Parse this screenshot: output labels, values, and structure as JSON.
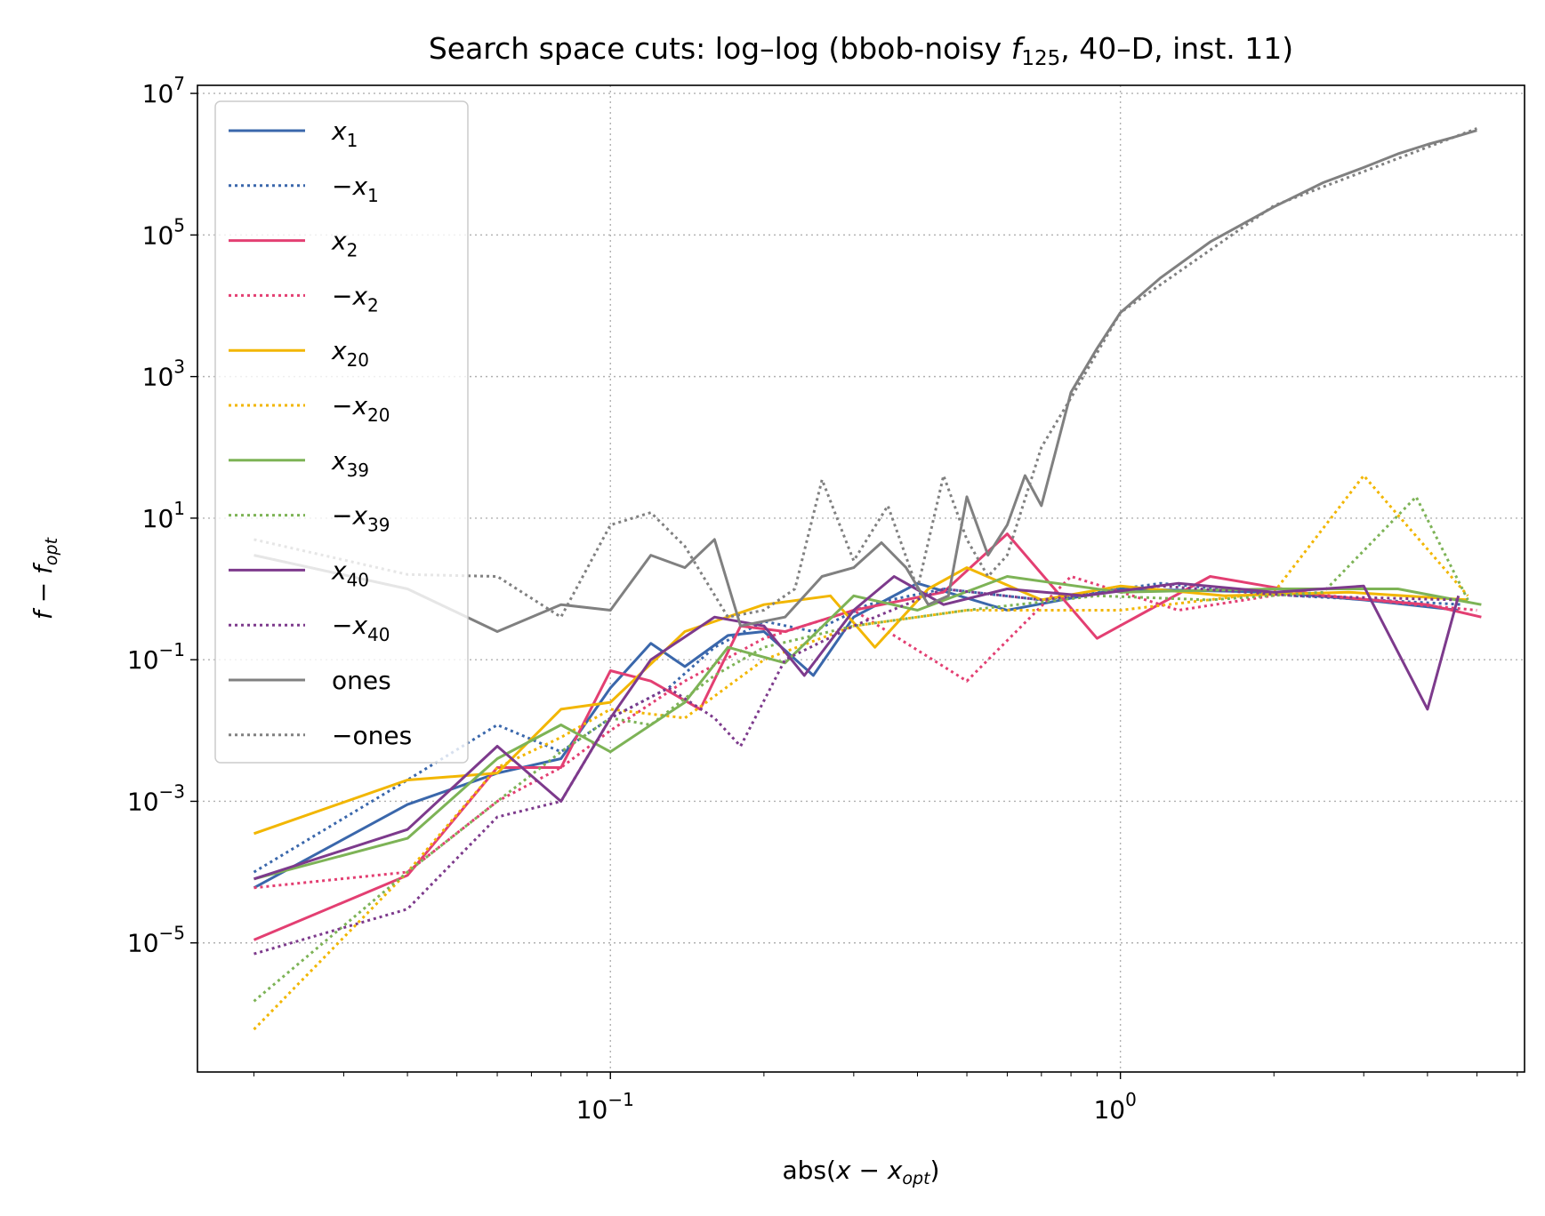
{
  "chart_data": {
    "type": "line",
    "title": "Search space cuts: log–log (bbob-noisy f125, 40–D, inst. 11)",
    "title_parts": {
      "prefix": "Search space cuts: log–log (bbob-noisy ",
      "f": "f",
      "f_sub": "125",
      "suffix": ", 40–D, inst. 11)"
    },
    "xlabel": "abs(x − x_opt)",
    "xlabel_parts": {
      "prefix": "abs(",
      "var": "x",
      "minus": " − ",
      "var2": "x",
      "sub": "opt",
      "suffix": ")"
    },
    "ylabel": "f − f_opt",
    "ylabel_parts": {
      "var": "f",
      "minus": " − ",
      "var2": "f",
      "sub": "opt"
    },
    "x_scale": "log",
    "y_scale": "log",
    "xlim": [
      0.0155,
      6.2
    ],
    "ylim": [
      1.5e-07,
      13000000.0
    ],
    "x_ticks": [
      {
        "value": 0.1,
        "base": "10",
        "exp": "−1"
      },
      {
        "value": 1,
        "base": "10",
        "exp": "0"
      }
    ],
    "y_ticks": [
      {
        "value": 1e-05,
        "base": "10",
        "exp": "−5"
      },
      {
        "value": 0.001,
        "base": "10",
        "exp": "−3"
      },
      {
        "value": 0.1,
        "base": "10",
        "exp": "−1"
      },
      {
        "value": 10,
        "base": "10",
        "exp": "1"
      },
      {
        "value": 1000,
        "base": "10",
        "exp": "3"
      },
      {
        "value": 100000,
        "base": "10",
        "exp": "5"
      },
      {
        "value": 10000000,
        "base": "10",
        "exp": "7"
      }
    ],
    "grid": true,
    "legend_position": "upper-left",
    "series": [
      {
        "name": "x_1",
        "label_parts": {
          "neg": "",
          "var": "x",
          "sub": "1"
        },
        "color": "#3a67ab",
        "dash": "solid",
        "x": [
          0.02,
          0.04,
          0.06,
          0.08,
          0.1,
          0.12,
          0.14,
          0.17,
          0.2,
          0.25,
          0.3,
          0.4,
          0.6,
          1.0,
          2.0,
          3.0,
          4.6
        ],
        "y": [
          6e-05,
          0.0009,
          0.0025,
          0.004,
          0.04,
          0.17,
          0.08,
          0.22,
          0.25,
          0.06,
          0.4,
          1.2,
          0.5,
          1.0,
          0.9,
          0.7,
          0.5
        ]
      },
      {
        "name": "−x_1",
        "label_parts": {
          "neg": "−",
          "var": "x",
          "sub": "1"
        },
        "color": "#3a67ab",
        "dash": "dotted",
        "x": [
          0.02,
          0.04,
          0.06,
          0.08,
          0.1,
          0.13,
          0.16,
          0.2,
          0.25,
          0.32,
          0.45,
          0.7,
          1.2,
          2.2,
          4.7
        ],
        "y": [
          0.0001,
          0.002,
          0.012,
          0.005,
          0.015,
          0.04,
          0.15,
          0.35,
          0.25,
          0.6,
          1.0,
          0.7,
          1.2,
          0.8,
          0.6
        ]
      },
      {
        "name": "x_2",
        "label_parts": {
          "neg": "",
          "var": "x",
          "sub": "2"
        },
        "color": "#e33f72",
        "dash": "solid",
        "x": [
          0.02,
          0.04,
          0.06,
          0.08,
          0.1,
          0.12,
          0.15,
          0.18,
          0.22,
          0.3,
          0.45,
          0.6,
          0.9,
          1.5,
          2.5,
          4.0,
          5.1
        ],
        "y": [
          1.1e-05,
          9e-05,
          0.003,
          0.003,
          0.07,
          0.05,
          0.02,
          0.3,
          0.25,
          0.5,
          0.9,
          6.0,
          0.2,
          1.5,
          0.8,
          0.6,
          0.4
        ]
      },
      {
        "name": "−x_2",
        "label_parts": {
          "neg": "−",
          "var": "x",
          "sub": "2"
        },
        "color": "#e33f72",
        "dash": "dotted",
        "x": [
          0.02,
          0.04,
          0.06,
          0.08,
          0.1,
          0.14,
          0.2,
          0.3,
          0.5,
          0.8,
          1.3,
          2.2,
          3.8,
          5.0
        ],
        "y": [
          6e-05,
          0.0001,
          0.001,
          0.003,
          0.01,
          0.05,
          0.2,
          0.5,
          0.05,
          1.5,
          0.5,
          0.9,
          0.6,
          0.5
        ]
      },
      {
        "name": "x_20",
        "label_parts": {
          "neg": "",
          "var": "x",
          "sub": "20"
        },
        "color": "#f2b600",
        "dash": "solid",
        "x": [
          0.02,
          0.04,
          0.06,
          0.08,
          0.1,
          0.14,
          0.2,
          0.27,
          0.33,
          0.42,
          0.5,
          0.7,
          1.0,
          1.6,
          2.8,
          4.8
        ],
        "y": [
          0.00035,
          0.002,
          0.0025,
          0.02,
          0.025,
          0.25,
          0.6,
          0.8,
          0.15,
          1.0,
          2.0,
          0.7,
          1.1,
          0.8,
          0.9,
          0.7
        ]
      },
      {
        "name": "−x_20",
        "label_parts": {
          "neg": "−",
          "var": "x",
          "sub": "20"
        },
        "color": "#f2b600",
        "dash": "dotted",
        "x": [
          0.02,
          0.04,
          0.06,
          0.08,
          0.1,
          0.14,
          0.2,
          0.3,
          0.5,
          1.0,
          2.0,
          3.0,
          4.8
        ],
        "y": [
          6e-07,
          0.0001,
          0.003,
          0.008,
          0.02,
          0.015,
          0.1,
          0.3,
          0.5,
          0.5,
          0.9,
          40.0,
          0.8
        ]
      },
      {
        "name": "x_39",
        "label_parts": {
          "neg": "",
          "var": "x",
          "sub": "39"
        },
        "color": "#7db356",
        "dash": "solid",
        "x": [
          0.02,
          0.04,
          0.06,
          0.08,
          0.1,
          0.14,
          0.17,
          0.22,
          0.3,
          0.4,
          0.6,
          1.0,
          2.0,
          3.5,
          5.1
        ],
        "y": [
          8e-05,
          0.0003,
          0.004,
          0.012,
          0.005,
          0.025,
          0.15,
          0.09,
          0.8,
          0.5,
          1.5,
          0.9,
          1.0,
          1.0,
          0.6
        ]
      },
      {
        "name": "−x_39",
        "label_parts": {
          "neg": "−",
          "var": "x",
          "sub": "39"
        },
        "color": "#7db356",
        "dash": "dotted",
        "x": [
          0.02,
          0.04,
          0.06,
          0.08,
          0.1,
          0.12,
          0.16,
          0.2,
          0.3,
          0.5,
          0.9,
          1.5,
          2.5,
          3.8,
          4.8
        ],
        "y": [
          1.5e-06,
          0.0001,
          0.001,
          0.005,
          0.015,
          0.012,
          0.06,
          0.15,
          0.3,
          0.5,
          0.8,
          0.7,
          0.9,
          20.0,
          0.7
        ]
      },
      {
        "name": "x_40",
        "label_parts": {
          "neg": "",
          "var": "x",
          "sub": "40"
        },
        "color": "#7d3a8c",
        "dash": "solid",
        "x": [
          0.02,
          0.04,
          0.06,
          0.08,
          0.1,
          0.12,
          0.16,
          0.2,
          0.24,
          0.3,
          0.36,
          0.45,
          0.6,
          0.85,
          1.3,
          2.0,
          3.0,
          4.0,
          4.6
        ],
        "y": [
          8e-05,
          0.0004,
          0.006,
          0.001,
          0.015,
          0.1,
          0.4,
          0.3,
          0.06,
          0.5,
          1.5,
          0.6,
          1.0,
          0.8,
          1.2,
          0.9,
          1.1,
          0.02,
          0.8
        ]
      },
      {
        "name": "−x_40",
        "label_parts": {
          "neg": "−",
          "var": "x",
          "sub": "40"
        },
        "color": "#7d3a8c",
        "dash": "dotted",
        "x": [
          0.02,
          0.04,
          0.06,
          0.08,
          0.1,
          0.13,
          0.16,
          0.18,
          0.22,
          0.3,
          0.45,
          0.7,
          1.2,
          2.2,
          4.6
        ],
        "y": [
          7e-06,
          3e-05,
          0.0006,
          0.001,
          0.015,
          0.04,
          0.015,
          0.006,
          0.1,
          0.3,
          1.0,
          0.7,
          1.1,
          0.8,
          0.7
        ]
      },
      {
        "name": "ones",
        "label_parts": {
          "neg": "",
          "var": "ones",
          "sub": ""
        },
        "color": "#808080",
        "dash": "solid",
        "x": [
          0.02,
          0.04,
          0.06,
          0.08,
          0.1,
          0.12,
          0.14,
          0.16,
          0.18,
          0.22,
          0.26,
          0.3,
          0.34,
          0.38,
          0.42,
          0.46,
          0.5,
          0.55,
          0.6,
          0.65,
          0.7,
          0.75,
          0.8,
          0.9,
          1.0,
          1.2,
          1.5,
          2.0,
          2.5,
          3.0,
          3.5,
          4.0,
          4.5,
          5.0
        ],
        "y": [
          3.0,
          1.0,
          0.25,
          0.6,
          0.5,
          3.0,
          2.0,
          5.0,
          0.3,
          0.4,
          1.5,
          2.0,
          4.5,
          2.0,
          0.6,
          0.8,
          20.0,
          3.0,
          8.0,
          40.0,
          15.0,
          100.0,
          600.0,
          2500.0,
          8000.0,
          25000.0,
          80000.0,
          250000.0,
          550000.0,
          900000.0,
          1400000.0,
          1900000.0,
          2400000.0,
          3000000.0
        ]
      },
      {
        "name": "−ones",
        "label_parts": {
          "neg": "−",
          "var": "ones",
          "sub": ""
        },
        "color": "#808080",
        "dash": "dotted",
        "x": [
          0.02,
          0.04,
          0.06,
          0.08,
          0.1,
          0.12,
          0.14,
          0.17,
          0.2,
          0.23,
          0.26,
          0.3,
          0.35,
          0.4,
          0.45,
          0.5,
          0.55,
          0.6,
          0.7,
          0.8,
          1.0,
          2.0,
          5.0
        ],
        "y": [
          5.0,
          1.6,
          1.5,
          0.4,
          8.0,
          12.0,
          4.0,
          0.4,
          0.5,
          1.0,
          35.0,
          2.5,
          15.0,
          1.0,
          40.0,
          5.0,
          1.5,
          3.0,
          100.0,
          500.0,
          8000.0,
          260000.0,
          3200000.0
        ]
      }
    ]
  }
}
